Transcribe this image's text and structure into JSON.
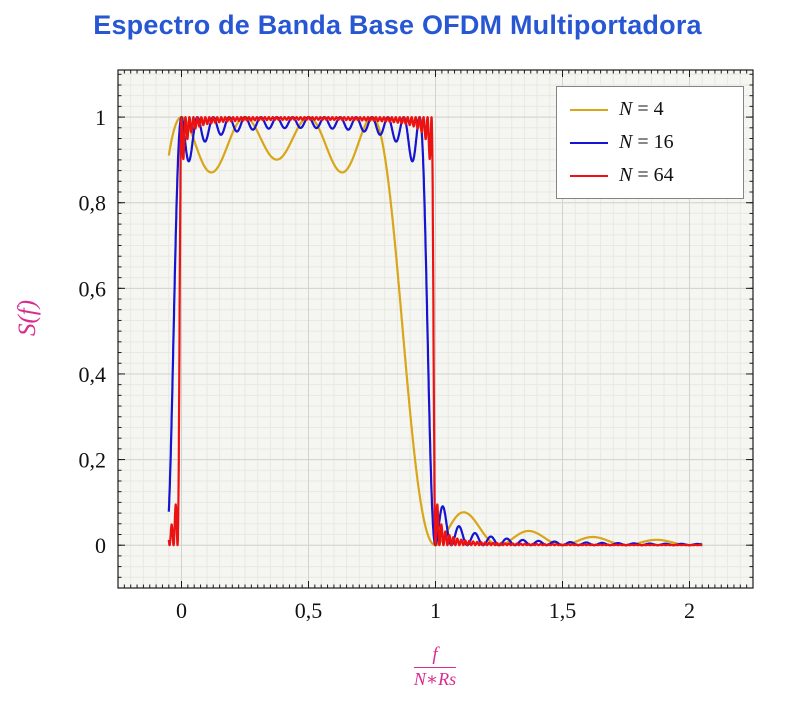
{
  "title": {
    "text": "Espectro de Banda Base OFDM Multiportadora",
    "color": "#2857d4"
  },
  "chart_data": {
    "type": "line",
    "title": "Espectro de Banda Base OFDM Multiportadora",
    "xlabel_numerator": "f",
    "xlabel_denominator": "N∗Rs",
    "ylabel": "S(f)",
    "label_color": "#d92b8f",
    "axis_color": "#1a1a1a",
    "tick_label_color": "#111111",
    "plot_background": "#f5f5f1",
    "grid_minor_color": "#e9e9e3",
    "grid_major_color": "#d3d3cd",
    "xlim": [
      -0.25,
      2.25
    ],
    "ylim": [
      -0.1,
      1.11
    ],
    "x_major_ticks": [
      0,
      0.5,
      1,
      1.5,
      2
    ],
    "x_tick_labels": [
      "0",
      "0,5",
      "1",
      "1,5",
      "2"
    ],
    "y_major_ticks": [
      0,
      0.2,
      0.4,
      0.6,
      0.8,
      1
    ],
    "y_tick_labels": [
      "0",
      "0,2",
      "0,4",
      "0,6",
      "0,8",
      "1"
    ],
    "x_minor_grid_step": 0.05,
    "y_minor_grid_step": 0.025,
    "x_minor_tick_step": 0.025,
    "y_minor_tick_step": 0.025,
    "grid": true,
    "legend_position": "top-right",
    "domain": [
      -0.05,
      2.05
    ],
    "samples": 3000,
    "formula": "S(x) = sum_{k=0}^{N-1} sinc^2(N*x - k),  sinc(t) = sin(pi*t)/(pi*t),  x = f/(N*Rs); flat passband ~1 over 0<x<1 with ripple (deep dips ~0.87 for N=4, edge ripple for N=16/64), brick-wall rolloff near x=1 and decaying sidelobes for x>1",
    "series": [
      {
        "label": "N = 4",
        "N": 4,
        "color": "#D9A61A"
      },
      {
        "label": "N = 16",
        "N": 16,
        "color": "#1414D2"
      },
      {
        "label": "N = 64",
        "N": 64,
        "color": "#EC1212"
      }
    ]
  }
}
